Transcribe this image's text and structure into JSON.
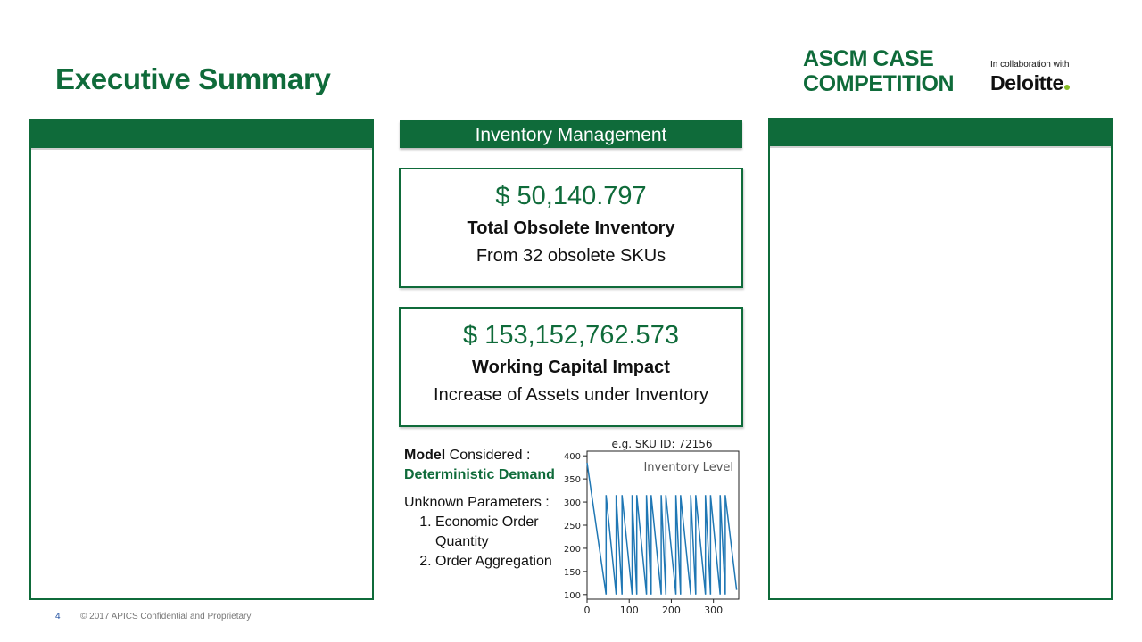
{
  "slide": {
    "title": "Executive Summary",
    "page_number": "4",
    "footer": "© 2017 APICS Confidential and Proprietary"
  },
  "logo": {
    "line1": "ASCM CASE",
    "line2": "COMPETITION",
    "collab": "In collaboration with",
    "partner": "Deloitte",
    "partner_dot": "."
  },
  "center": {
    "header": "Inventory Management",
    "cards": [
      {
        "value": "$ 50,140.797",
        "label": "Total Obsolete Inventory",
        "sub": "From 32 obsolete SKUs"
      },
      {
        "value": "$ 153,152,762.573",
        "label": "Working Capital Impact",
        "sub": "Increase of Assets under Inventory"
      }
    ],
    "model": {
      "label_bold": "Model",
      "label_rest": " Considered :",
      "value": "Deterministic Demand",
      "unknown_title": "Unknown Parameters :",
      "items": [
        "Economic Order Quantity",
        "Order Aggregation"
      ]
    }
  },
  "colors": {
    "brand_green": "#0f6b3a",
    "line_blue": "#1f77b4",
    "deloitte_dot": "#86bc25"
  },
  "chart_data": {
    "type": "line",
    "title": "e.g. SKU ID: 72156",
    "legend": "Inventory Level",
    "legend_position": "top-right",
    "xlim": [
      0,
      360
    ],
    "ylim": [
      90,
      410
    ],
    "xticks": [
      0,
      100,
      200,
      300
    ],
    "yticks": [
      100,
      150,
      200,
      250,
      300,
      350,
      400
    ],
    "grid": false,
    "series": [
      {
        "name": "Inventory Level",
        "x": [
          0,
          45,
          45,
          69,
          69,
          83,
          83,
          107,
          107,
          118,
          118,
          141,
          141,
          152,
          152,
          176,
          176,
          187,
          187,
          211,
          211,
          222,
          222,
          246,
          246,
          258,
          258,
          281,
          281,
          293,
          293,
          316,
          316,
          328,
          328,
          355
        ],
        "y": [
          385,
          100,
          315,
          100,
          315,
          100,
          315,
          100,
          315,
          100,
          315,
          100,
          315,
          100,
          315,
          100,
          315,
          100,
          315,
          100,
          315,
          100,
          315,
          100,
          315,
          100,
          315,
          100,
          315,
          100,
          315,
          100,
          315,
          100,
          315,
          110
        ]
      }
    ]
  }
}
